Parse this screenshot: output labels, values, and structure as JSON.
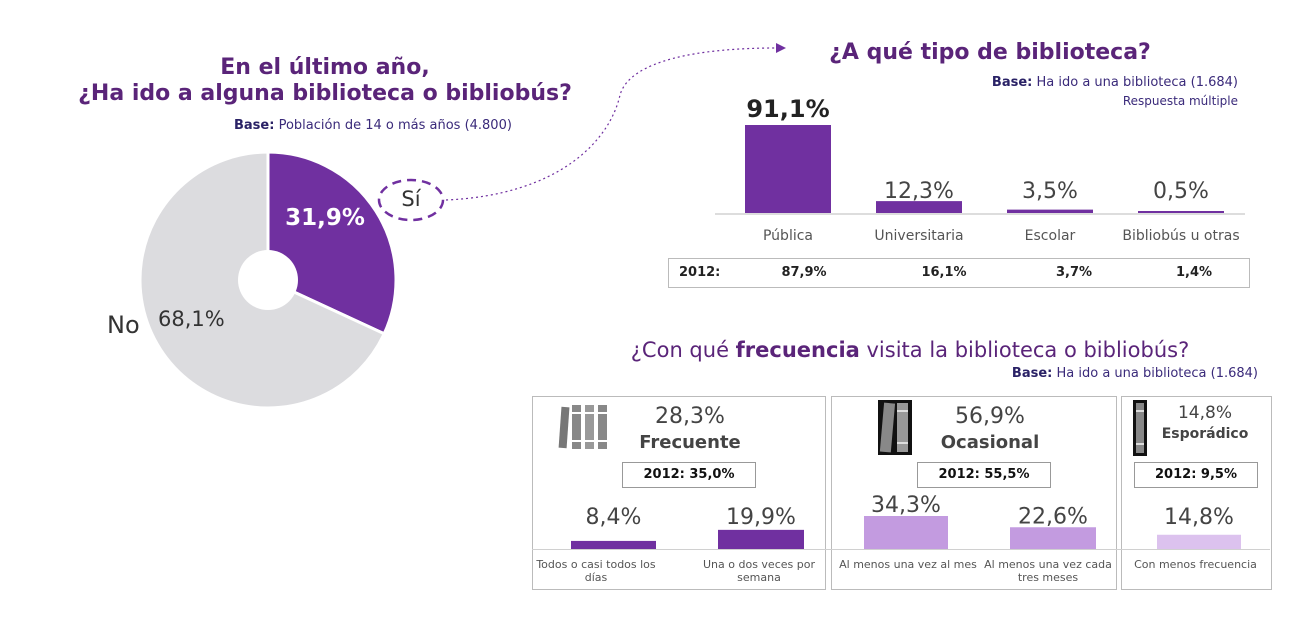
{
  "pie": {
    "title_line1": "En el último año,",
    "title_line2": "¿Ha ido a alguna biblioteca o bibliobús?",
    "base_label": "Base:",
    "base_text": "Población de 14 o más años (4.800)",
    "yes_label": "Sí",
    "no_label": "No",
    "yes_value_text": "31,9%",
    "no_value_text": "68,1%"
  },
  "bars": {
    "title": "¿A qué tipo de biblioteca?",
    "base_label": "Base:",
    "base_text": "Ha ido a una biblioteca (1.684)",
    "note": "Respuesta múltiple",
    "labels": [
      "91,1%",
      "12,3%",
      "3,5%",
      "0,5%"
    ],
    "categories": [
      "Pública",
      "Universitaria",
      "Escolar",
      "Bibliobús u otras"
    ],
    "compare_label": "2012:",
    "compare_values": [
      "87,9%",
      "16,1%",
      "3,7%",
      "1,4%"
    ]
  },
  "freq": {
    "title_pre": "¿Con qué ",
    "title_bold": "frecuencia",
    "title_post": " visita la biblioteca o bibliobús?",
    "base_label": "Base:",
    "base_text": "Ha ido a una biblioteca (1.684)",
    "groups": [
      {
        "pct": "28,3%",
        "name": "Frecuente",
        "year_box": "2012: 35,0%"
      },
      {
        "pct": "56,9%",
        "name": "Ocasional",
        "year_box": "2012: 55,5%"
      },
      {
        "pct": "14,8%",
        "name": "Esporádico",
        "year_box": "2012: 9,5%"
      }
    ],
    "bar_labels": [
      "8,4%",
      "19,9%",
      "34,3%",
      "22,6%",
      "14,8%"
    ],
    "bar_categories": [
      "Todos o casi todos los días",
      "Una o dos veces por semana",
      "Al menos una vez al mes",
      "Al menos una vez cada tres meses",
      "Con menos frecuencia"
    ]
  },
  "colors": {
    "purple": "#7030a0",
    "light_purple": "#c39be0",
    "lighter_purple": "#dcc2ee",
    "grey": "#dcdcdf"
  },
  "chart_data": [
    {
      "type": "pie",
      "title": "En el último año, ¿Ha ido a alguna biblioteca o bibliobús?",
      "categories": [
        "Sí",
        "No"
      ],
      "values": [
        31.9,
        68.1
      ]
    },
    {
      "type": "bar",
      "title": "¿A qué tipo de biblioteca?",
      "categories": [
        "Pública",
        "Universitaria",
        "Escolar",
        "Bibliobús u otras"
      ],
      "values": [
        91.1,
        12.3,
        3.5,
        0.5
      ],
      "compare_2012": [
        87.9,
        16.1,
        3.7,
        1.4
      ]
    },
    {
      "type": "bar",
      "title": "¿Con qué frecuencia visita la biblioteca o bibliobús?",
      "categories": [
        "Todos o casi todos los días",
        "Una o dos veces por semana",
        "Al menos una vez al mes",
        "Al menos una vez cada tres meses",
        "Con menos frecuencia"
      ],
      "values": [
        8.4,
        19.9,
        34.3,
        22.6,
        14.8
      ],
      "groups": [
        {
          "name": "Frecuente",
          "value": 28.3,
          "value_2012": 35.0
        },
        {
          "name": "Ocasional",
          "value": 56.9,
          "value_2012": 55.5
        },
        {
          "name": "Esporádico",
          "value": 14.8,
          "value_2012": 9.5
        }
      ]
    }
  ]
}
